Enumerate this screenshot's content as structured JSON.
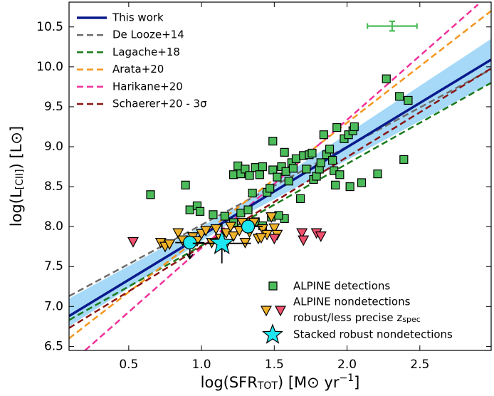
{
  "chart_data": {
    "type": "scatter",
    "xlim": [
      0.09,
      2.99
    ],
    "ylim": [
      6.45,
      10.81
    ],
    "xticks": [
      0.5,
      {
        "value": 1.0,
        "label": "1.0"
      },
      1.5,
      {
        "value": 2.0,
        "label": "2.0"
      },
      2.5
    ],
    "yticks": [
      6.5,
      {
        "value": 7.0,
        "label": "7.0"
      },
      7.5,
      {
        "value": 8.0,
        "label": "8.0"
      },
      8.5,
      {
        "value": 9.0,
        "label": "9.0"
      },
      9.5,
      {
        "value": 10.0,
        "label": "10.0"
      },
      10.5
    ],
    "x_label": [
      {
        "text": "log(SFR",
        "shift": "none"
      },
      {
        "text": "TOT",
        "shift": "sub"
      },
      {
        "text": ") [M⊙ yr",
        "shift": "none"
      },
      {
        "text": "−1",
        "shift": "sup"
      },
      {
        "text": "]",
        "shift": "none"
      }
    ],
    "y_label": [
      {
        "text": "log(L",
        "shift": "none"
      },
      {
        "text": "[CII]",
        "shift": "sub"
      },
      {
        "text": ") [L⊙]",
        "shift": "none"
      }
    ],
    "band": {
      "color": "#8fd0f5",
      "x": [
        0.09,
        1.2,
        2.99
      ],
      "lower": [
        6.75,
        8.05,
        9.8
      ],
      "upper": [
        7.1,
        8.2,
        10.35
      ]
    },
    "lines": [
      {
        "name": "This work",
        "color": "#0a1a8c",
        "dash": false,
        "x": [
          0.09,
          2.99
        ],
        "y": [
          6.88,
          10.09
        ]
      },
      {
        "name": "De Looze+14",
        "color": "#6e6e6e",
        "dash": true,
        "x": [
          0.09,
          2.99
        ],
        "y": [
          7.13,
          9.97
        ]
      },
      {
        "name": "Lagache+18",
        "color": "#1a7a1a",
        "dash": true,
        "x": [
          0.09,
          2.99
        ],
        "y": [
          6.83,
          9.8
        ]
      },
      {
        "name": "Arata+20",
        "color": "#f5961e",
        "dash": true,
        "x": [
          0.09,
          2.99
        ],
        "y": [
          6.6,
          10.7
        ]
      },
      {
        "name": "Harikane+20",
        "color": "#f0329b",
        "dash": true,
        "x": [
          0.2,
          2.9
        ],
        "y": [
          6.45,
          10.78
        ]
      },
      {
        "name": "Schaerer+20 - 3σ",
        "color": "#8b1414",
        "dash": true,
        "x": [
          0.09,
          2.99
        ],
        "y": [
          6.73,
          9.98
        ]
      }
    ],
    "groups": [
      {
        "marker": "square",
        "color": "#4cbc5a",
        "x": [
          0.65,
          0.89,
          0.92,
          0.97,
          0.99,
          1.08,
          1.16,
          1.22,
          1.27,
          1.32,
          1.37,
          1.42,
          1.48,
          1.57,
          1.22,
          1.25,
          1.27,
          1.3,
          1.33,
          1.35,
          1.37,
          1.4,
          1.42,
          1.45,
          1.47,
          1.49,
          1.49,
          1.52,
          1.55,
          1.57,
          1.58,
          1.6,
          1.62,
          1.63,
          1.65,
          1.68,
          1.7,
          1.72,
          1.74,
          1.76,
          1.77,
          1.79,
          1.81,
          1.82,
          1.84,
          1.86,
          1.88,
          1.9,
          1.91,
          1.92,
          1.93,
          1.95,
          1.98,
          2.01,
          2.02,
          2.04,
          2.05,
          2.1,
          2.21,
          2.27,
          2.36,
          2.39,
          2.42,
          1.53
        ],
        "y": [
          8.4,
          8.52,
          8.21,
          8.26,
          8.19,
          8.15,
          8.13,
          8.05,
          8.17,
          8.21,
          8.06,
          8.01,
          8.12,
          8.1,
          8.65,
          8.76,
          8.66,
          8.72,
          8.64,
          8.42,
          8.74,
          8.65,
          8.75,
          8.43,
          8.48,
          8.71,
          9.07,
          8.62,
          8.75,
          8.93,
          8.69,
          8.57,
          8.8,
          8.73,
          8.85,
          8.35,
          8.89,
          8.72,
          8.9,
          8.92,
          8.59,
          8.63,
          8.72,
          8.8,
          9.15,
          8.9,
          8.97,
          8.83,
          8.7,
          8.52,
          9.24,
          8.65,
          9.1,
          9.15,
          8.5,
          9.2,
          9.25,
          8.55,
          8.66,
          9.85,
          9.63,
          8.84,
          9.58,
          8.14
        ]
      },
      {
        "marker": "triangle",
        "color": "#f0b22a",
        "x": [
          0.72,
          0.75,
          0.78,
          0.84,
          0.87,
          0.94,
          0.97,
          1.0,
          1.03,
          1.07,
          1.1,
          1.13,
          1.17,
          1.2,
          1.22,
          1.26,
          1.28,
          1.3,
          1.33,
          1.36,
          1.39,
          1.42,
          1.45,
          1.48,
          1.5,
          1.52,
          1.41,
          1.16
        ],
        "y": [
          7.8,
          7.75,
          7.78,
          7.92,
          7.83,
          7.87,
          7.82,
          7.91,
          7.95,
          7.8,
          7.97,
          7.85,
          7.92,
          8.0,
          7.88,
          7.95,
          8.05,
          7.8,
          7.93,
          8.05,
          7.85,
          7.97,
          7.9,
          8.12,
          7.98,
          7.9,
          7.86,
          7.75
        ]
      },
      {
        "marker": "triangle",
        "color": "#f0506e",
        "x": [
          0.53,
          1.69,
          1.7,
          1.79,
          1.82,
          1.5
        ],
        "y": [
          7.81,
          7.92,
          7.83,
          7.92,
          7.88,
          7.85
        ]
      },
      {
        "marker": "circle",
        "color": "#1ee6f0",
        "x": [
          0.92,
          1.32
        ],
        "y": [
          7.8,
          8.0
        ],
        "xerr": [
          0.1,
          0.1
        ],
        "yerr": [
          0.2,
          0.08
        ],
        "upper_limit": [
          true,
          false
        ]
      },
      {
        "marker": "star",
        "color": "#1ee6f0",
        "x": [
          1.14
        ],
        "y": [
          7.79
        ],
        "xerr": [
          0.2
        ],
        "yerr": [
          0.25
        ],
        "upper_limit": [
          false
        ]
      }
    ],
    "typical_error": {
      "color": "#4cbc5a",
      "x": 2.31,
      "y": 10.51,
      "xerr": 0.17,
      "yerr": 0.06
    },
    "legend_bottom": [
      "ALPINE detections",
      "ALPINE nondetections",
      {
        "text": "robust/less precise z",
        "sub": "spec"
      },
      "Stacked robust nondetections"
    ]
  }
}
